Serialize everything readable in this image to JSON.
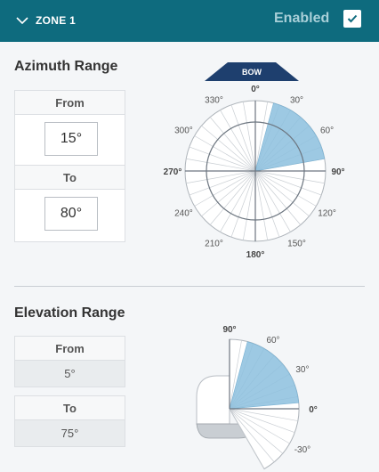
{
  "header": {
    "zone_title": "ZONE 1",
    "enabled_label": "Enabled",
    "enabled": true
  },
  "azimuth": {
    "title": "Azimuth Range",
    "from_label": "From",
    "from_value": "15°",
    "to_label": "To",
    "to_value": "80°",
    "bow_label": "BOW",
    "from_deg": 15,
    "to_deg": 80,
    "tick_labels": [
      {
        "deg": 0,
        "text": "0°",
        "bold": true
      },
      {
        "deg": 30,
        "text": "30°",
        "bold": false
      },
      {
        "deg": 60,
        "text": "60°",
        "bold": false
      },
      {
        "deg": 90,
        "text": "90°",
        "bold": true
      },
      {
        "deg": 120,
        "text": "120°",
        "bold": false
      },
      {
        "deg": 150,
        "text": "150°",
        "bold": false
      },
      {
        "deg": 180,
        "text": "180°",
        "bold": true
      },
      {
        "deg": 210,
        "text": "210°",
        "bold": false
      },
      {
        "deg": 240,
        "text": "240°",
        "bold": false
      },
      {
        "deg": 270,
        "text": "270°",
        "bold": true
      },
      {
        "deg": 300,
        "text": "300°",
        "bold": false
      },
      {
        "deg": 330,
        "text": "330°",
        "bold": false
      }
    ]
  },
  "elevation": {
    "title": "Elevation Range",
    "from_label": "From",
    "from_value": "5°",
    "to_label": "To",
    "to_value": "75°",
    "from_deg": 5,
    "to_deg": 75,
    "tick_labels": [
      {
        "deg": 90,
        "text": "90°",
        "bold": true
      },
      {
        "deg": 60,
        "text": "60°",
        "bold": false
      },
      {
        "deg": 30,
        "text": "30°",
        "bold": false
      },
      {
        "deg": 0,
        "text": "0°",
        "bold": true
      },
      {
        "deg": -30,
        "text": "-30°",
        "bold": false
      }
    ]
  },
  "colors": {
    "header_bg": "#0e6b7e",
    "sector_fill": "#8cc0de",
    "bow_fill": "#1e3f6e"
  },
  "icons": {
    "collapse": "chevron-down-icon",
    "check": "checkmark-icon"
  }
}
